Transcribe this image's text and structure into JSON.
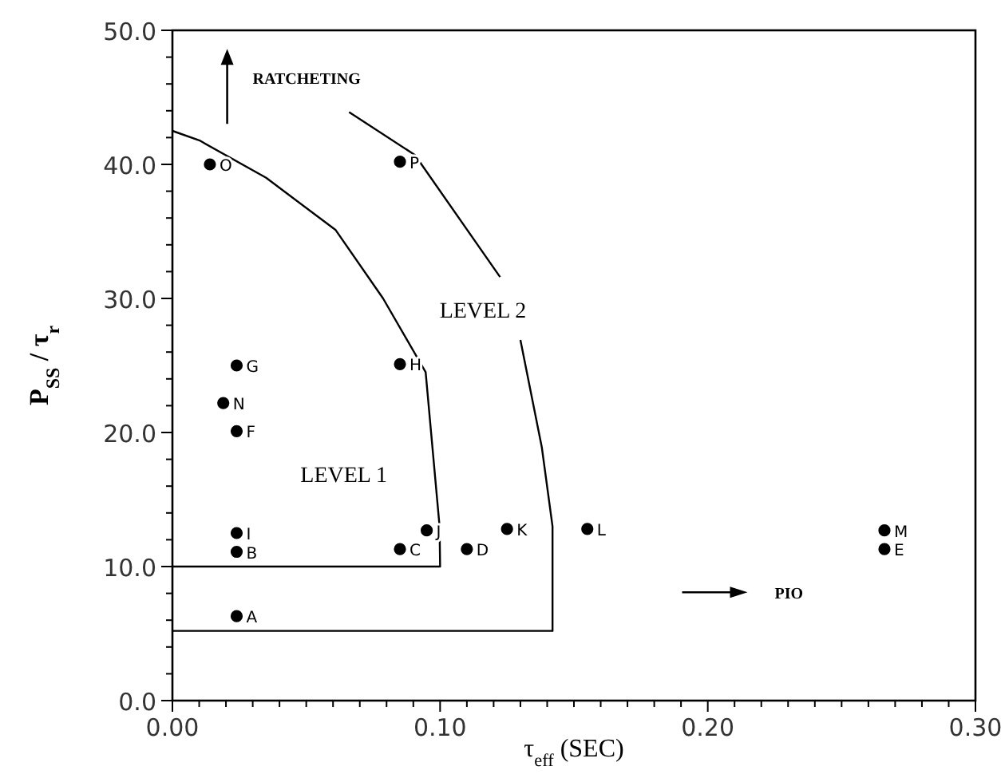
{
  "chart_data": {
    "type": "scatter",
    "xlabel": "τ$_{eff}$ (SEC)",
    "ylabel": "P$_{SS}$ / τ$_{r}$",
    "xlim": [
      0,
      0.3
    ],
    "ylim": [
      0,
      50
    ],
    "xticks": [
      {
        "value": 0,
        "label": "0.00"
      },
      {
        "value": 0.01,
        "label": null
      },
      {
        "value": 0.02,
        "label": null
      },
      {
        "value": 0.03,
        "label": null
      },
      {
        "value": 0.04,
        "label": null
      },
      {
        "value": 0.05,
        "label": null
      },
      {
        "value": 0.06,
        "label": null
      },
      {
        "value": 0.07,
        "label": null
      },
      {
        "value": 0.08,
        "label": null
      },
      {
        "value": 0.09,
        "label": null
      },
      {
        "value": 0.1,
        "label": "0.10"
      },
      {
        "value": 0.11,
        "label": null
      },
      {
        "value": 0.12,
        "label": null
      },
      {
        "value": 0.13,
        "label": null
      },
      {
        "value": 0.14,
        "label": null
      },
      {
        "value": 0.15,
        "label": null
      },
      {
        "value": 0.16,
        "label": null
      },
      {
        "value": 0.17,
        "label": null
      },
      {
        "value": 0.18,
        "label": null
      },
      {
        "value": 0.19,
        "label": null
      },
      {
        "value": 0.2,
        "label": "0.20"
      },
      {
        "value": 0.21,
        "label": null
      },
      {
        "value": 0.22,
        "label": null
      },
      {
        "value": 0.23,
        "label": null
      },
      {
        "value": 0.24,
        "label": null
      },
      {
        "value": 0.25,
        "label": null
      },
      {
        "value": 0.26,
        "label": null
      },
      {
        "value": 0.27,
        "label": null
      },
      {
        "value": 0.28,
        "label": null
      },
      {
        "value": 0.29,
        "label": null
      },
      {
        "value": 0.3,
        "label": "0.30"
      }
    ],
    "yticks": [
      {
        "value": 0,
        "label": "0.0"
      },
      {
        "value": 2,
        "label": null
      },
      {
        "value": 4,
        "label": null
      },
      {
        "value": 6,
        "label": null
      },
      {
        "value": 8,
        "label": null
      },
      {
        "value": 10,
        "label": "10.0"
      },
      {
        "value": 12,
        "label": null
      },
      {
        "value": 14,
        "label": null
      },
      {
        "value": 16,
        "label": null
      },
      {
        "value": 18,
        "label": null
      },
      {
        "value": 20,
        "label": "20.0"
      },
      {
        "value": 22,
        "label": null
      },
      {
        "value": 24,
        "label": null
      },
      {
        "value": 26,
        "label": null
      },
      {
        "value": 28,
        "label": null
      },
      {
        "value": 30,
        "label": "30.0"
      },
      {
        "value": 32,
        "label": null
      },
      {
        "value": 34,
        "label": null
      },
      {
        "value": 36,
        "label": null
      },
      {
        "value": 38,
        "label": null
      },
      {
        "value": 40,
        "label": "40.0"
      },
      {
        "value": 42,
        "label": null
      },
      {
        "value": 44,
        "label": null
      },
      {
        "value": 46,
        "label": null
      },
      {
        "value": 48,
        "label": null
      },
      {
        "value": 50,
        "label": "50.0"
      }
    ],
    "grid": false,
    "marker": "circle",
    "series": [
      {
        "type": "line",
        "color": "#000000",
        "marker": "none",
        "line_style": "solid",
        "x": [
          0,
          0.01,
          0.035,
          0.061,
          0.0787,
          0.0946,
          0.0998,
          0.1,
          0.1,
          0
        ],
        "values": [
          42.5,
          41.8,
          39,
          35.1,
          30,
          24.5,
          13,
          10,
          10,
          10
        ]
      },
      {
        "type": "line",
        "color": "#000000",
        "marker": "none",
        "line_style": "solid",
        "x": [
          0.066,
          0.0906,
          0.1224,
          0.126,
          0.13,
          0.138,
          0.142,
          0.142,
          0
        ],
        "values": [
          43.9,
          40.7,
          31.6,
          null,
          26.9,
          18.9,
          13,
          5.2,
          5.2
        ]
      },
      {
        "color": "#000000",
        "x": [
          0.014,
          0.085,
          0.019,
          0.024,
          0.024,
          0.024,
          0.085,
          0.095
        ],
        "values": [
          40,
          25.1,
          22.2,
          20.1,
          12.5,
          11.1,
          11.3,
          12.7
        ],
        "value_labels": [
          "O",
          "H",
          "N",
          "F",
          "I",
          "B",
          "C",
          "J"
        ]
      },
      {
        "color": "#000000",
        "x": [
          0.085,
          0.024,
          0.024,
          0.11,
          0.125,
          0.155,
          0.266,
          0.266
        ],
        "values": [
          40.2,
          25,
          6.3,
          11.3,
          12.8,
          12.8,
          12.7,
          11.3
        ],
        "value_labels": [
          "P",
          "G",
          "A",
          "D",
          "K",
          "L",
          "M",
          "E"
        ]
      }
    ],
    "annotations": [
      "RATCHETING",
      "PIO",
      "LEVEL 1",
      "LEVEL 2"
    ]
  }
}
